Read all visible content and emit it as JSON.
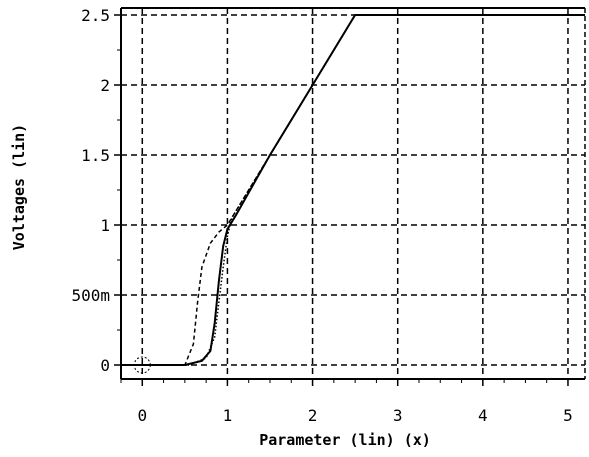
{
  "chart_data": {
    "type": "line",
    "xlabel": "Parameter (lin) (x)",
    "ylabel": "Voltages (lin)",
    "xlim": [
      -0.25,
      5.2
    ],
    "ylim": [
      -0.1,
      2.55
    ],
    "x_ticks": [
      {
        "value": 0,
        "label": "0"
      },
      {
        "value": 1,
        "label": "1"
      },
      {
        "value": 2,
        "label": "2"
      },
      {
        "value": 3,
        "label": "3"
      },
      {
        "value": 4,
        "label": "4"
      },
      {
        "value": 5,
        "label": "5"
      }
    ],
    "y_ticks": [
      {
        "value": 0,
        "label": "0"
      },
      {
        "value": 0.5,
        "label": "500m"
      },
      {
        "value": 1,
        "label": "1"
      },
      {
        "value": 1.5,
        "label": "1.5"
      },
      {
        "value": 2,
        "label": "2"
      },
      {
        "value": 2.5,
        "label": "2.5"
      }
    ],
    "grid": true,
    "grid_style": "dashed",
    "series": [
      {
        "style": "solid",
        "x": [
          -0.25,
          0.5,
          0.7,
          0.8,
          0.85,
          0.9,
          0.95,
          1.0,
          1.1,
          1.5,
          2.0,
          2.5,
          5.2
        ],
        "y": [
          0,
          0,
          0.03,
          0.1,
          0.3,
          0.6,
          0.85,
          0.97,
          1.07,
          1.5,
          2.0,
          2.5,
          2.5
        ]
      },
      {
        "style": "dashed",
        "x": [
          -0.25,
          0.5,
          0.6,
          0.65,
          0.7,
          0.8,
          0.9,
          1.0,
          1.5,
          2.0,
          2.5,
          5.2
        ],
        "y": [
          0,
          0,
          0.15,
          0.45,
          0.7,
          0.87,
          0.95,
          1.0,
          1.5,
          2.0,
          2.5,
          2.5
        ]
      },
      {
        "style": "dotted",
        "x": [
          -0.25,
          0.55,
          0.75,
          0.85,
          0.9,
          0.95,
          1.0,
          1.05,
          1.5,
          2.0,
          2.5,
          5.2
        ],
        "y": [
          0,
          0,
          0.05,
          0.2,
          0.45,
          0.7,
          0.92,
          1.05,
          1.5,
          2.0,
          2.5,
          2.5
        ]
      }
    ],
    "marker": {
      "shape": "circle",
      "x": 0,
      "y": 0
    }
  }
}
